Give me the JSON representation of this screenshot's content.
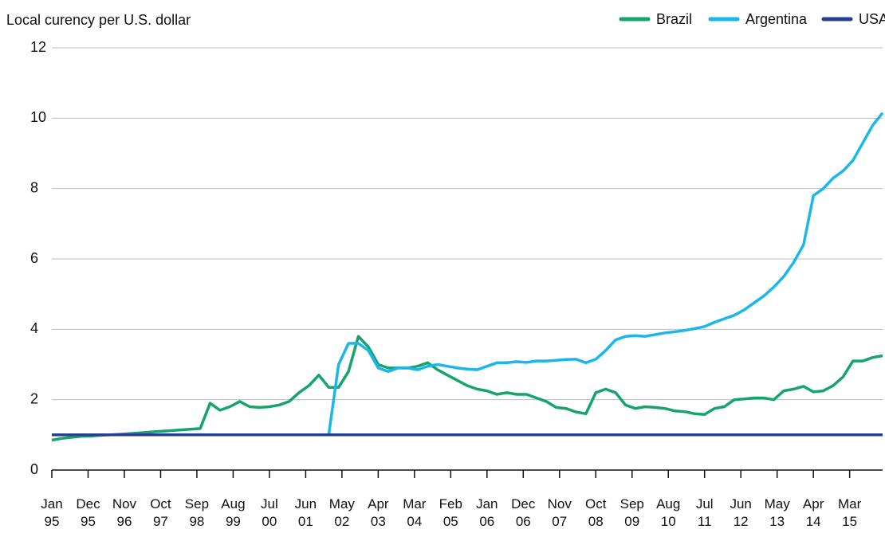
{
  "chart_data": {
    "type": "line",
    "y_label": "Local curency per U.S. dollar",
    "x": [
      "1995-01",
      "1995-04",
      "1995-07",
      "1995-10",
      "1996-01",
      "1996-04",
      "1996-07",
      "1996-10",
      "1997-01",
      "1997-04",
      "1997-07",
      "1997-10",
      "1998-01",
      "1998-04",
      "1998-07",
      "1998-10",
      "1999-01",
      "1999-04",
      "1999-07",
      "1999-10",
      "2000-01",
      "2000-04",
      "2000-07",
      "2000-10",
      "2001-01",
      "2001-04",
      "2001-07",
      "2001-10",
      "2002-01",
      "2002-04",
      "2002-07",
      "2002-10",
      "2003-01",
      "2003-04",
      "2003-07",
      "2003-10",
      "2004-01",
      "2004-04",
      "2004-07",
      "2004-10",
      "2005-01",
      "2005-04",
      "2005-07",
      "2005-10",
      "2006-01",
      "2006-04",
      "2006-07",
      "2006-10",
      "2007-01",
      "2007-04",
      "2007-07",
      "2007-10",
      "2008-01",
      "2008-04",
      "2008-07",
      "2008-10",
      "2009-01",
      "2009-04",
      "2009-07",
      "2009-10",
      "2010-01",
      "2010-04",
      "2010-07",
      "2010-10",
      "2011-01",
      "2011-04",
      "2011-07",
      "2011-10",
      "2012-01",
      "2012-04",
      "2012-07",
      "2012-10",
      "2013-01",
      "2013-04",
      "2013-07",
      "2013-10",
      "2014-01",
      "2014-04",
      "2014-07",
      "2014-10",
      "2015-01",
      "2015-04",
      "2015-07",
      "2015-10",
      "2016-01"
    ],
    "series": [
      {
        "name": "Brazil",
        "color": "#14a46c",
        "values": [
          0.85,
          0.9,
          0.93,
          0.96,
          0.97,
          0.99,
          1.0,
          1.02,
          1.04,
          1.06,
          1.08,
          1.1,
          1.12,
          1.14,
          1.16,
          1.18,
          1.9,
          1.7,
          1.8,
          1.95,
          1.8,
          1.78,
          1.8,
          1.85,
          1.95,
          2.2,
          2.4,
          2.7,
          2.35,
          2.35,
          2.8,
          3.8,
          3.5,
          3.0,
          2.9,
          2.9,
          2.9,
          2.95,
          3.05,
          2.85,
          2.7,
          2.55,
          2.4,
          2.3,
          2.25,
          2.15,
          2.2,
          2.15,
          2.15,
          2.05,
          1.95,
          1.78,
          1.75,
          1.65,
          1.6,
          2.2,
          2.3,
          2.2,
          1.85,
          1.75,
          1.8,
          1.78,
          1.75,
          1.68,
          1.66,
          1.6,
          1.58,
          1.75,
          1.8,
          2.0,
          2.02,
          2.05,
          2.05,
          2.0,
          2.25,
          2.3,
          2.38,
          2.22,
          2.25,
          2.4,
          2.65,
          3.1,
          3.1,
          3.2,
          3.25
        ]
      },
      {
        "name": "Argentina",
        "color": "#1ab7ea",
        "values": [
          1,
          1,
          1,
          1,
          1,
          1,
          1,
          1,
          1,
          1,
          1,
          1,
          1,
          1,
          1,
          1,
          1,
          1,
          1,
          1,
          1,
          1,
          1,
          1,
          1,
          1,
          1,
          1,
          1,
          3.0,
          3.6,
          3.6,
          3.4,
          2.9,
          2.8,
          2.9,
          2.9,
          2.85,
          2.95,
          3.0,
          2.95,
          2.9,
          2.87,
          2.85,
          2.95,
          3.05,
          3.05,
          3.08,
          3.06,
          3.1,
          3.1,
          3.12,
          3.14,
          3.15,
          3.05,
          3.15,
          3.4,
          3.7,
          3.8,
          3.82,
          3.8,
          3.85,
          3.9,
          3.93,
          3.97,
          4.02,
          4.08,
          4.2,
          4.3,
          4.4,
          4.55,
          4.75,
          4.95,
          5.2,
          5.5,
          5.9,
          6.4,
          7.8,
          8.0,
          8.3,
          8.5,
          8.8,
          9.3,
          9.8,
          10.15
        ]
      },
      {
        "name": "USA",
        "color": "#263f8e",
        "values": [
          1,
          1,
          1,
          1,
          1,
          1,
          1,
          1,
          1,
          1,
          1,
          1,
          1,
          1,
          1,
          1,
          1,
          1,
          1,
          1,
          1,
          1,
          1,
          1,
          1,
          1,
          1,
          1,
          1,
          1,
          1,
          1,
          1,
          1,
          1,
          1,
          1,
          1,
          1,
          1,
          1,
          1,
          1,
          1,
          1,
          1,
          1,
          1,
          1,
          1,
          1,
          1,
          1,
          1,
          1,
          1,
          1,
          1,
          1,
          1,
          1,
          1,
          1,
          1,
          1,
          1,
          1,
          1,
          1,
          1,
          1,
          1,
          1,
          1,
          1,
          1,
          1,
          1,
          1,
          1,
          1,
          1,
          1,
          1,
          1
        ]
      }
    ],
    "xlim": [
      "1995-01",
      "2016-01"
    ],
    "xticks": [
      {
        "value": "1995-01",
        "label": "Jan 95"
      },
      {
        "value": "1995-12",
        "label": "Dec 95"
      },
      {
        "value": "1996-11",
        "label": "Nov 96"
      },
      {
        "value": "1997-10",
        "label": "Oct 97"
      },
      {
        "value": "1998-09",
        "label": "Sep 98"
      },
      {
        "value": "1999-08",
        "label": "Aug 99"
      },
      {
        "value": "2000-07",
        "label": "Jul 00"
      },
      {
        "value": "2001-06",
        "label": "Jun 01"
      },
      {
        "value": "2002-05",
        "label": "May 02"
      },
      {
        "value": "2003-04",
        "label": "Apr 03"
      },
      {
        "value": "2004-03",
        "label": "Mar 04"
      },
      {
        "value": "2005-02",
        "label": "Feb 05"
      },
      {
        "value": "2006-01",
        "label": "Jan 06"
      },
      {
        "value": "2006-12",
        "label": "Dec 06"
      },
      {
        "value": "2007-11",
        "label": "Nov 07"
      },
      {
        "value": "2008-10",
        "label": "Oct 08"
      },
      {
        "value": "2009-09",
        "label": "Sep 09"
      },
      {
        "value": "2010-08",
        "label": "Aug 10"
      },
      {
        "value": "2011-07",
        "label": "Jul 11"
      },
      {
        "value": "2012-06",
        "label": "Jun 12"
      },
      {
        "value": "2013-05",
        "label": "May 13"
      },
      {
        "value": "2014-04",
        "label": "Apr 14"
      },
      {
        "value": "2015-03",
        "label": "Mar 15"
      }
    ],
    "ylim": [
      0,
      12
    ],
    "yticks": [
      0,
      2,
      4,
      6,
      8,
      10,
      12
    ],
    "grid": true,
    "legend": "top-right"
  }
}
